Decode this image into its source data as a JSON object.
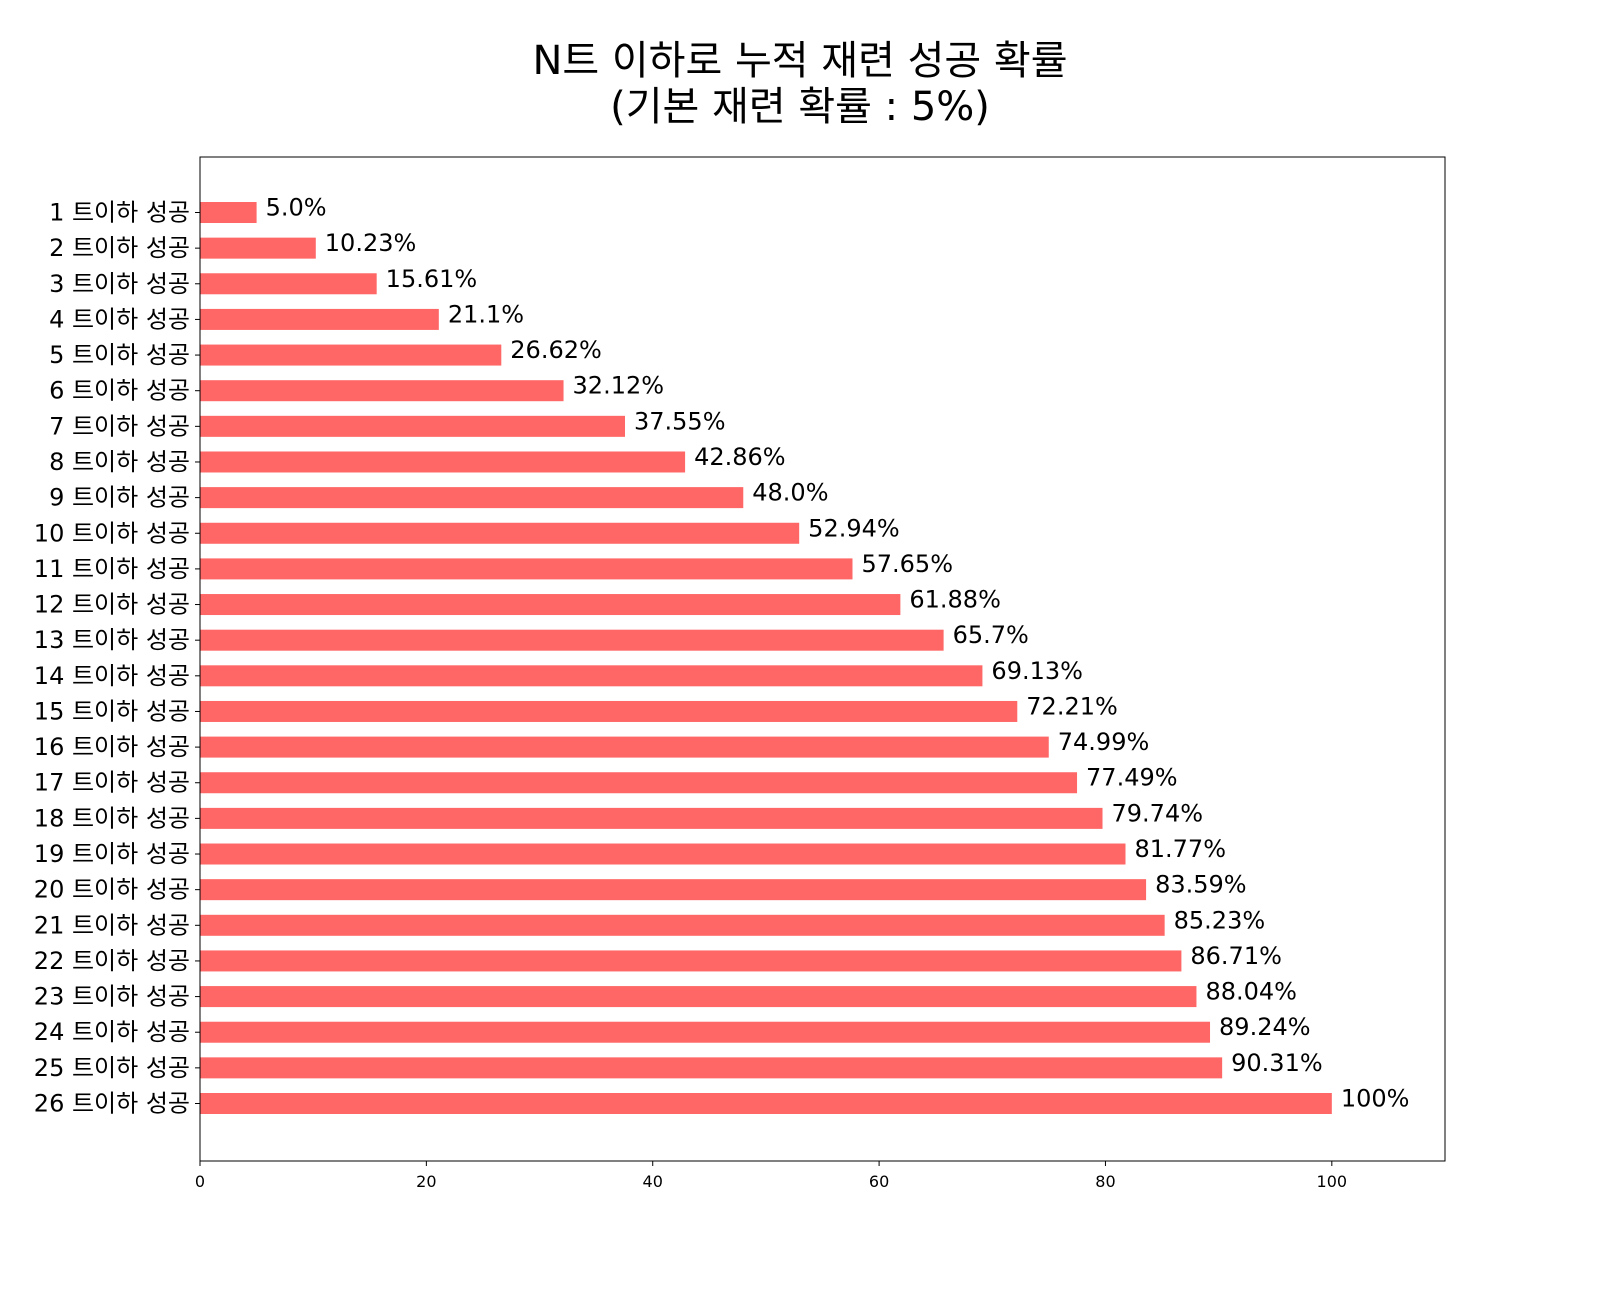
{
  "chart_data": {
    "type": "bar",
    "orientation": "horizontal",
    "title_lines": [
      "N트 이하로 누적 재련 성공 확률",
      "(기본 재련 확률 : 5%)"
    ],
    "categories": [
      "1 트이하 성공",
      "2 트이하 성공",
      "3 트이하 성공",
      "4 트이하 성공",
      "5 트이하 성공",
      "6 트이하 성공",
      "7 트이하 성공",
      "8 트이하 성공",
      "9 트이하 성공",
      "10 트이하 성공",
      "11 트이하 성공",
      "12 트이하 성공",
      "13 트이하 성공",
      "14 트이하 성공",
      "15 트이하 성공",
      "16 트이하 성공",
      "17 트이하 성공",
      "18 트이하 성공",
      "19 트이하 성공",
      "20 트이하 성공",
      "21 트이하 성공",
      "22 트이하 성공",
      "23 트이하 성공",
      "24 트이하 성공",
      "25 트이하 성공",
      "26 트이하 성공"
    ],
    "values": [
      5.0,
      10.23,
      15.61,
      21.1,
      26.62,
      32.12,
      37.55,
      42.86,
      48.0,
      52.94,
      57.65,
      61.88,
      65.7,
      69.13,
      72.21,
      74.99,
      77.49,
      79.74,
      81.77,
      83.59,
      85.23,
      86.71,
      88.04,
      89.24,
      90.31,
      100
    ],
    "value_labels": [
      "5.0%",
      "10.23%",
      "15.61%",
      "21.1%",
      "26.62%",
      "32.12%",
      "37.55%",
      "42.86%",
      "48.0%",
      "52.94%",
      "57.65%",
      "61.88%",
      "65.7%",
      "69.13%",
      "72.21%",
      "74.99%",
      "77.49%",
      "79.74%",
      "81.77%",
      "83.59%",
      "85.23%",
      "86.71%",
      "88.04%",
      "89.24%",
      "90.31%",
      "100%"
    ],
    "xlim": [
      0,
      110
    ],
    "xticks": [
      0,
      20,
      40,
      60,
      80,
      100
    ],
    "xlabel": "",
    "ylabel": "",
    "grid": false,
    "legend": "none",
    "bar_color": "#ff6666"
  }
}
